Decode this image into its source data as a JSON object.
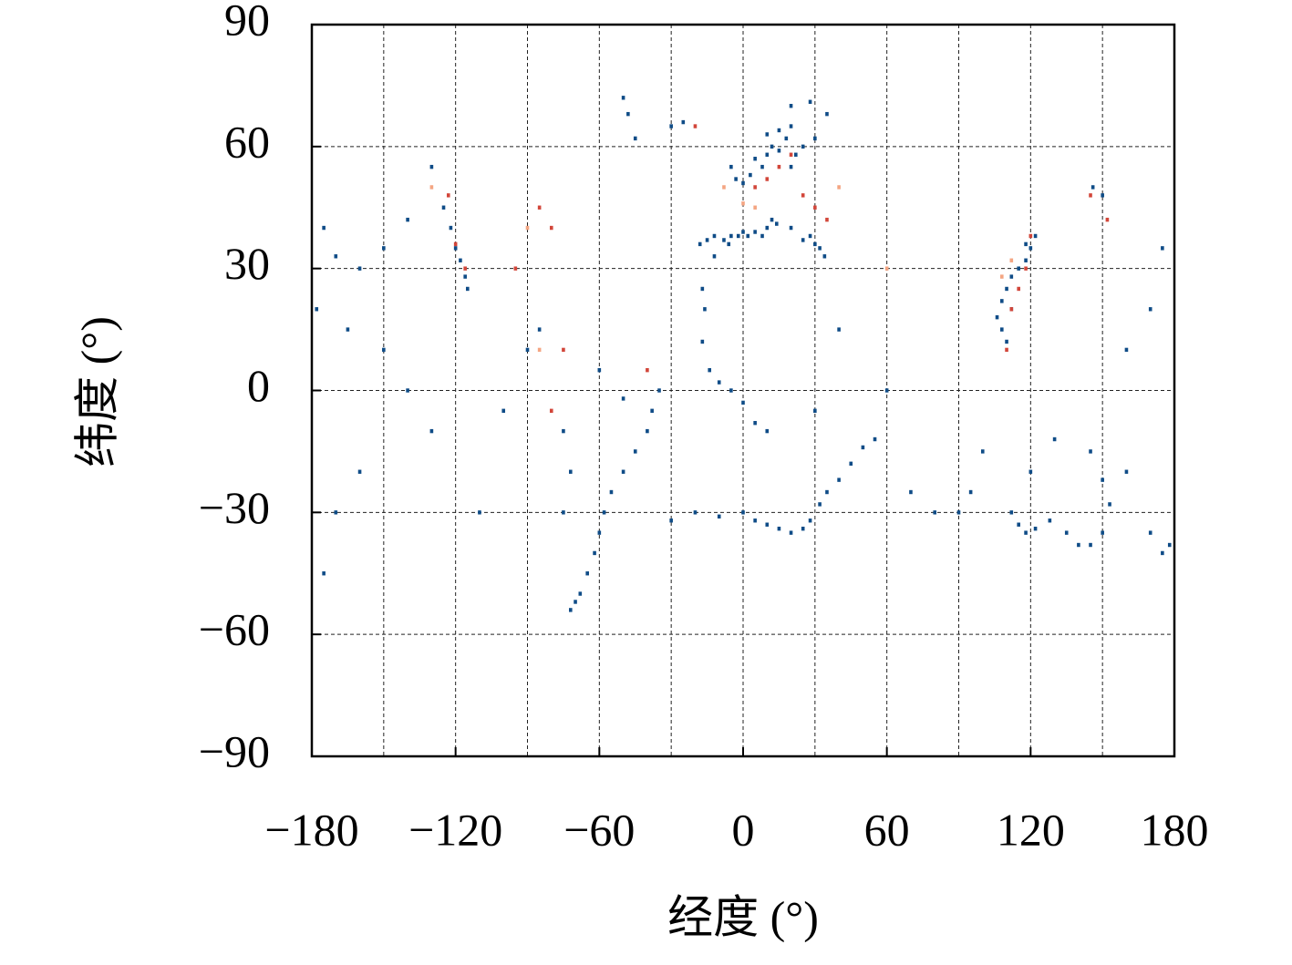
{
  "chart_data": {
    "type": "scatter",
    "x_label": "经度 (°)",
    "y_label": "纬度 (°)",
    "xlim": [
      -180,
      180
    ],
    "ylim": [
      -90,
      90
    ],
    "xticks": [
      {
        "value": -180,
        "label": "−180"
      },
      {
        "value": -120,
        "label": "−120"
      },
      {
        "value": -60,
        "label": "−60"
      },
      0,
      60,
      120,
      180
    ],
    "yticks": [
      {
        "value": -90,
        "label": "−90"
      },
      {
        "value": -60,
        "label": "−60"
      },
      {
        "value": -30,
        "label": "−30"
      },
      0,
      30,
      60,
      90
    ],
    "x_grid": [
      -150,
      -120,
      -90,
      -60,
      -30,
      0,
      30,
      60,
      90,
      120,
      150
    ],
    "y_grid": [
      -60,
      -30,
      0,
      30,
      60
    ],
    "grid": true,
    "series": [
      {
        "color": "#0f4c87",
        "x": [
          -15,
          -12,
          -8,
          -6,
          -5,
          -2,
          0,
          2,
          5,
          8,
          10,
          12,
          14,
          20,
          25,
          28,
          30,
          32,
          34,
          -5,
          -3,
          0,
          3,
          5,
          8,
          10,
          12,
          15,
          18,
          20,
          22,
          25,
          30,
          20,
          15,
          10,
          -18,
          -12,
          -17,
          -16,
          -17,
          -14,
          -10,
          -5,
          0,
          5,
          10,
          0,
          5,
          10,
          15,
          20,
          25,
          28,
          32,
          35,
          40,
          45,
          50,
          55,
          -10,
          -20,
          -30,
          -70,
          -72,
          -68,
          -65,
          -62,
          -60,
          -58,
          -55,
          -50,
          -45,
          -40,
          -38,
          -35,
          -50,
          -60,
          -75,
          -72,
          -75,
          -120,
          -118,
          -116,
          -115,
          -122,
          -125,
          -130,
          -140,
          -150,
          -160,
          -170,
          -175,
          -178,
          -165,
          -150,
          -140,
          -130,
          -160,
          -170,
          -110,
          -100,
          -90,
          -85,
          110,
          108,
          106,
          108,
          110,
          112,
          115,
          118,
          120,
          122,
          118,
          112,
          146,
          150,
          112,
          115,
          118,
          122,
          128,
          135,
          140,
          145,
          150,
          153,
          150,
          145,
          130,
          120,
          100,
          90,
          170,
          175,
          178,
          160,
          175,
          170,
          160,
          30,
          40,
          60,
          70,
          80,
          95,
          -175,
          -50,
          -48,
          -45,
          -30,
          -25,
          20,
          28,
          35
        ],
        "y": [
          37,
          38,
          37,
          36,
          38,
          38,
          39,
          38,
          39,
          38,
          40,
          42,
          41,
          40,
          37,
          38,
          36,
          35,
          33,
          55,
          52,
          51,
          53,
          57,
          55,
          58,
          60,
          59,
          62,
          55,
          58,
          60,
          62,
          65,
          64,
          63,
          36,
          33,
          25,
          20,
          12,
          5,
          2,
          0,
          -3,
          -8,
          -10,
          -30,
          -32,
          -33,
          -34,
          -35,
          -34,
          -32,
          -28,
          -25,
          -22,
          -18,
          -14,
          -12,
          -31,
          -30,
          -32,
          -52,
          -54,
          -50,
          -45,
          -40,
          -35,
          -30,
          -25,
          -20,
          -15,
          -10,
          -5,
          0,
          -2,
          5,
          -30,
          -20,
          -10,
          35,
          32,
          28,
          25,
          40,
          45,
          55,
          42,
          35,
          30,
          33,
          40,
          20,
          15,
          10,
          0,
          -10,
          -20,
          -30,
          -30,
          -5,
          10,
          15,
          12,
          15,
          18,
          22,
          25,
          28,
          30,
          32,
          35,
          38,
          36,
          20,
          50,
          48,
          -30,
          -33,
          -35,
          -34,
          -32,
          -35,
          -38,
          -38,
          -35,
          -28,
          -22,
          -15,
          -12,
          -20,
          -15,
          -30,
          -35,
          -40,
          -38,
          -20,
          35,
          20,
          10,
          -5,
          15,
          0,
          -25,
          -30,
          -25,
          -45,
          72,
          68,
          62,
          65,
          66,
          70,
          71,
          68
        ]
      },
      {
        "color": "#d2463a",
        "x": [
          -123,
          -120,
          -116,
          -80,
          -85,
          -75,
          -95,
          5,
          10,
          15,
          20,
          25,
          30,
          35,
          -20,
          115,
          118,
          112,
          120,
          145,
          152,
          110,
          -40,
          -80
        ],
        "y": [
          48,
          36,
          30,
          40,
          45,
          10,
          30,
          50,
          52,
          55,
          58,
          48,
          45,
          42,
          65,
          25,
          30,
          20,
          38,
          48,
          42,
          10,
          5,
          -5
        ]
      },
      {
        "color": "#f4a582",
        "x": [
          -8,
          0,
          5,
          108,
          112,
          -130,
          -90,
          40,
          -85,
          60
        ],
        "y": [
          50,
          46,
          45,
          28,
          32,
          50,
          40,
          50,
          10,
          30
        ]
      }
    ]
  }
}
